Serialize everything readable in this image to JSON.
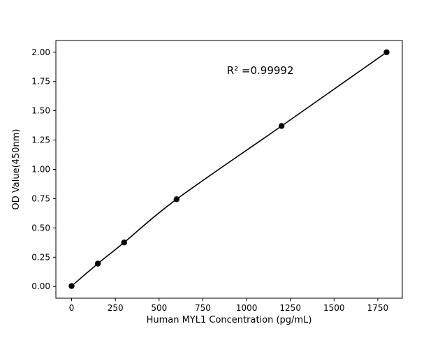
{
  "chart_data": {
    "type": "scatter",
    "title": "",
    "x": [
      0,
      150,
      300,
      600,
      1200,
      1800
    ],
    "y": [
      0.004,
      0.195,
      0.376,
      0.745,
      1.37,
      2.0
    ],
    "xlabel": "Human MYL1 Concentration (pg/mL)",
    "ylabel": "OD Value(450nm)",
    "annotation": "R² =0.99992",
    "xlim": [
      -90,
      1890
    ],
    "ylim": [
      -0.1,
      2.1
    ],
    "x_ticks": [
      0,
      250,
      500,
      750,
      1000,
      1250,
      1500,
      1750
    ],
    "x_tick_labels": [
      "0",
      "250",
      "500",
      "750",
      "1000",
      "1250",
      "1500",
      "1750"
    ],
    "y_ticks": [
      0.0,
      0.25,
      0.5,
      0.75,
      1.0,
      1.25,
      1.5,
      1.75,
      2.0
    ],
    "y_tick_labels": [
      "0.00",
      "0.25",
      "0.50",
      "0.75",
      "1.00",
      "1.25",
      "1.50",
      "1.75",
      "2.00"
    ],
    "grid": false,
    "legend": null,
    "line_color": "#000000",
    "marker_color": "#000000",
    "background_color": "#ffffff"
  }
}
